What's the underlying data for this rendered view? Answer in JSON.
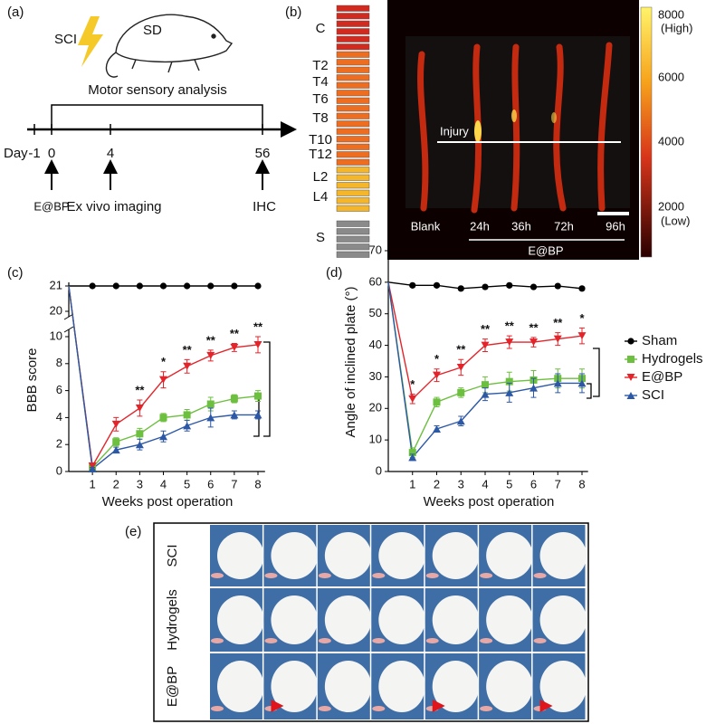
{
  "panel_a": {
    "label": "(a)",
    "injury": "SCI",
    "animal": "SD",
    "analysis": "Motor sensory analysis",
    "day_label": "Day",
    "days": [
      "-1",
      "0",
      "4",
      "56"
    ],
    "events": [
      "E@BP",
      "Ex vivo imaging",
      "IHC"
    ]
  },
  "panel_b": {
    "label": "(b)",
    "vertebrae": [
      "C",
      "T2",
      "T4",
      "T6",
      "T8",
      "T10",
      "T12",
      "L2",
      "L4",
      "S"
    ],
    "injury": "Injury",
    "samples": [
      "Blank",
      "24h",
      "36h",
      "72h",
      "96h"
    ],
    "group": "E@BP",
    "colorbar": {
      "ticks": [
        "8000",
        "6000",
        "4000",
        "2000"
      ],
      "high": "(High)",
      "low": "(Low)"
    }
  },
  "chart_data": [
    {
      "type": "line",
      "label": "(c)",
      "ylabel": "BBB score",
      "xlabel": "Weeks post operation",
      "x": [
        0,
        1,
        2,
        3,
        4,
        5,
        6,
        7,
        8
      ],
      "xlim": [
        0,
        8.3
      ],
      "xticks": [
        1,
        2,
        3,
        4,
        5,
        6,
        7,
        8
      ],
      "ylim": [
        0,
        21
      ],
      "yticks": [
        0,
        2,
        4,
        6,
        8,
        10,
        20,
        21
      ],
      "axis_break": [
        10,
        20
      ],
      "significance": [
        null,
        null,
        null,
        "**",
        "*",
        "**",
        "**",
        "**",
        "**"
      ],
      "significance_color": "#f39a2c",
      "series": [
        {
          "color": "#000000",
          "marker": "circle",
          "values": [
            21,
            21,
            21,
            21,
            21,
            21,
            21,
            21,
            21
          ]
        },
        {
          "color": "#6dbf3f",
          "marker": "square",
          "values": [
            21,
            0.3,
            2.2,
            2.8,
            4.0,
            4.2,
            5.0,
            5.4,
            5.6
          ],
          "errors": [
            null,
            0.1,
            0.3,
            0.4,
            0.3,
            0.4,
            0.5,
            0.3,
            0.4
          ]
        },
        {
          "color": "#e3242b",
          "marker": "triangle-down",
          "values": [
            21,
            0.4,
            3.5,
            4.7,
            6.8,
            7.8,
            8.6,
            9.2,
            9.4
          ],
          "errors": [
            null,
            0.2,
            0.5,
            0.6,
            0.6,
            0.5,
            0.4,
            0.3,
            0.6
          ]
        },
        {
          "color": "#2c58a6",
          "marker": "triangle-up",
          "values": [
            21,
            0.2,
            1.6,
            2.0,
            2.6,
            3.4,
            4.0,
            4.2,
            4.2
          ],
          "errors": [
            null,
            0.1,
            0.2,
            0.4,
            0.4,
            0.4,
            0.7,
            0.3,
            0.3
          ]
        }
      ]
    },
    {
      "type": "line",
      "label": "(d)",
      "ylabel": "Angle of inclined plate (°)",
      "xlabel": "Weeks post operation",
      "x": [
        0,
        1,
        2,
        3,
        4,
        5,
        6,
        7,
        8
      ],
      "xlim": [
        0,
        8.25
      ],
      "xticks": [
        1,
        2,
        3,
        4,
        5,
        6,
        7,
        8
      ],
      "ylim": [
        0,
        70
      ],
      "yticks": [
        0,
        10,
        20,
        30,
        40,
        50,
        60,
        70
      ],
      "legend": "right",
      "significance": [
        null,
        "*",
        "*",
        "**",
        "**",
        "**",
        "**",
        "**",
        "*"
      ],
      "significance_color": "#f39a2c",
      "series": [
        {
          "name": "Sham",
          "color": "#000000",
          "marker": "circle",
          "values": [
            60,
            59,
            59,
            58,
            58.5,
            59,
            58.5,
            58.8,
            58
          ]
        },
        {
          "name": "Hydrogels",
          "color": "#6dbf3f",
          "marker": "square",
          "values": [
            60,
            6,
            22,
            25,
            27.5,
            28.5,
            29,
            29.5,
            29.5
          ],
          "errors": [
            null,
            1.5,
            1.5,
            1.5,
            2.5,
            3,
            3,
            3,
            3
          ]
        },
        {
          "name": "E@BP",
          "color": "#e3242b",
          "marker": "triangle-down",
          "values": [
            60,
            23,
            30.5,
            33,
            40,
            41,
            41,
            42,
            43
          ],
          "errors": [
            null,
            1.5,
            2,
            2.5,
            2,
            2,
            1.5,
            2,
            2.5
          ]
        },
        {
          "name": "SCI",
          "color": "#2c58a6",
          "marker": "triangle-up",
          "values": [
            60,
            4.5,
            13.5,
            16,
            24.5,
            25,
            26.5,
            28,
            28
          ],
          "errors": [
            null,
            1,
            1,
            1.5,
            2,
            3,
            3,
            3,
            3
          ]
        }
      ]
    }
  ],
  "panel_e": {
    "label": "(e)",
    "rows": [
      "SCI",
      "Hydrogels",
      "E@BP"
    ]
  }
}
